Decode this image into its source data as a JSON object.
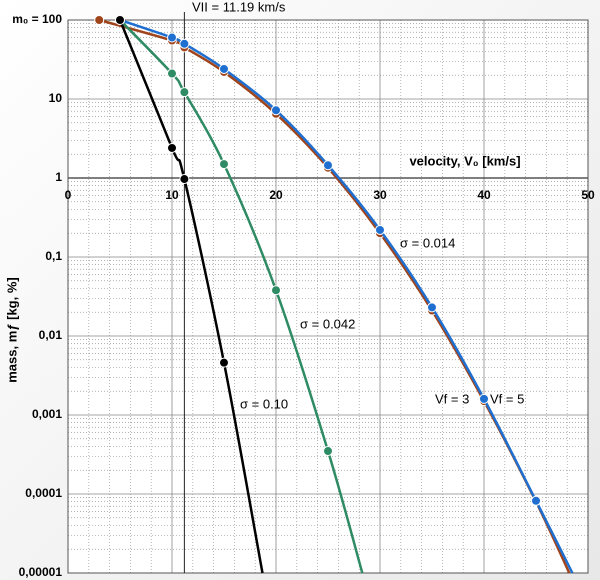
{
  "chart_data": {
    "type": "line",
    "xlabel": "velocity, V₀  [km/s]",
    "ylabel": "mass, mƒ  [kg, %]",
    "annotations": [
      "VII = 11.19 km/s",
      "σ = 0.014"
    ],
    "vline": 11.19,
    "log_y": true,
    "grid": true,
    "minor_grid": true,
    "xlim": [
      0,
      50
    ],
    "xticks": [
      0,
      10,
      20,
      30,
      40,
      50
    ],
    "ylim": [
      1e-05,
      100
    ],
    "yticks": [
      {
        "value": 1e-05,
        "label": "0,00001"
      },
      {
        "value": 0.0001,
        "label": "0,0001"
      },
      {
        "value": 0.001,
        "label": "0,001"
      },
      {
        "value": 0.01,
        "label": "0,01"
      },
      {
        "value": 0.1,
        "label": "0,1"
      },
      1,
      10,
      {
        "value": 100,
        "label": "m₀ = 100"
      }
    ],
    "series": [
      {
        "name": "Vf = 3",
        "color": "#a0441c",
        "x": [
          3,
          10,
          11.19,
          15,
          20,
          25,
          30,
          35,
          40,
          45,
          48.2
        ],
        "values": [
          100,
          55,
          45,
          22,
          6.5,
          1.35,
          0.2,
          0.021,
          0.0015,
          8e-05,
          1e-05
        ]
      },
      {
        "name": "Vf = 5",
        "color": "#1f6fd0",
        "x": [
          5,
          10,
          11.19,
          15,
          20,
          25,
          30,
          35,
          40,
          45,
          48.5
        ],
        "values": [
          100,
          60,
          50,
          24,
          7.2,
          1.45,
          0.22,
          0.023,
          0.0016,
          8.2e-05,
          1e-05
        ]
      },
      {
        "name": "σ = 0.042",
        "color": "#2e8b63",
        "x": [
          5,
          10,
          11.19,
          15,
          20,
          25,
          28.3
        ],
        "values": [
          100,
          21,
          12.2,
          1.5,
          0.038,
          0.00035,
          1e-05
        ]
      },
      {
        "name": "σ = 0.10",
        "color": "#000000",
        "x": [
          5,
          10,
          11.19,
          15,
          18.7
        ],
        "values": [
          100,
          2.4,
          0.97,
          0.0046,
          1e-05
        ]
      }
    ]
  }
}
